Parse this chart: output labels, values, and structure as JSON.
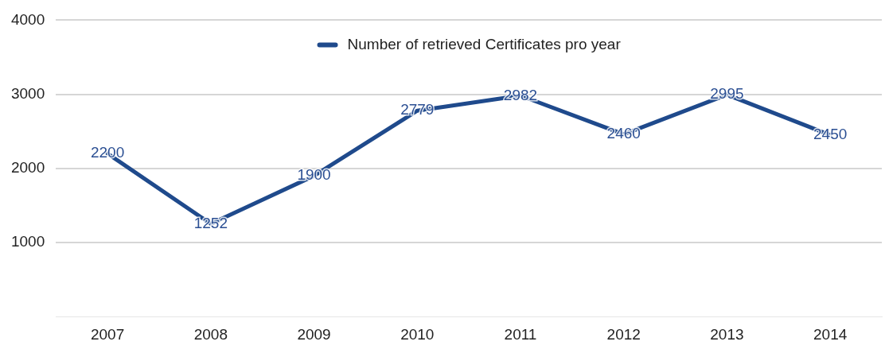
{
  "chart_data": {
    "type": "line",
    "categories": [
      "2007",
      "2008",
      "2009",
      "2010",
      "2011",
      "2012",
      "2013",
      "2014"
    ],
    "series": [
      {
        "name": "Number of retrieved Certificates pro year",
        "color": "#1f4a8c",
        "values": [
          2200,
          1252,
          1900,
          2779,
          2982,
          2460,
          2995,
          2450
        ]
      }
    ],
    "ylim": [
      0,
      4000
    ],
    "yticks": [
      1000,
      2000,
      3000,
      4000
    ],
    "grid": "y",
    "legend": "top",
    "data_labels": true,
    "marker": "none",
    "line_style": "solid"
  }
}
